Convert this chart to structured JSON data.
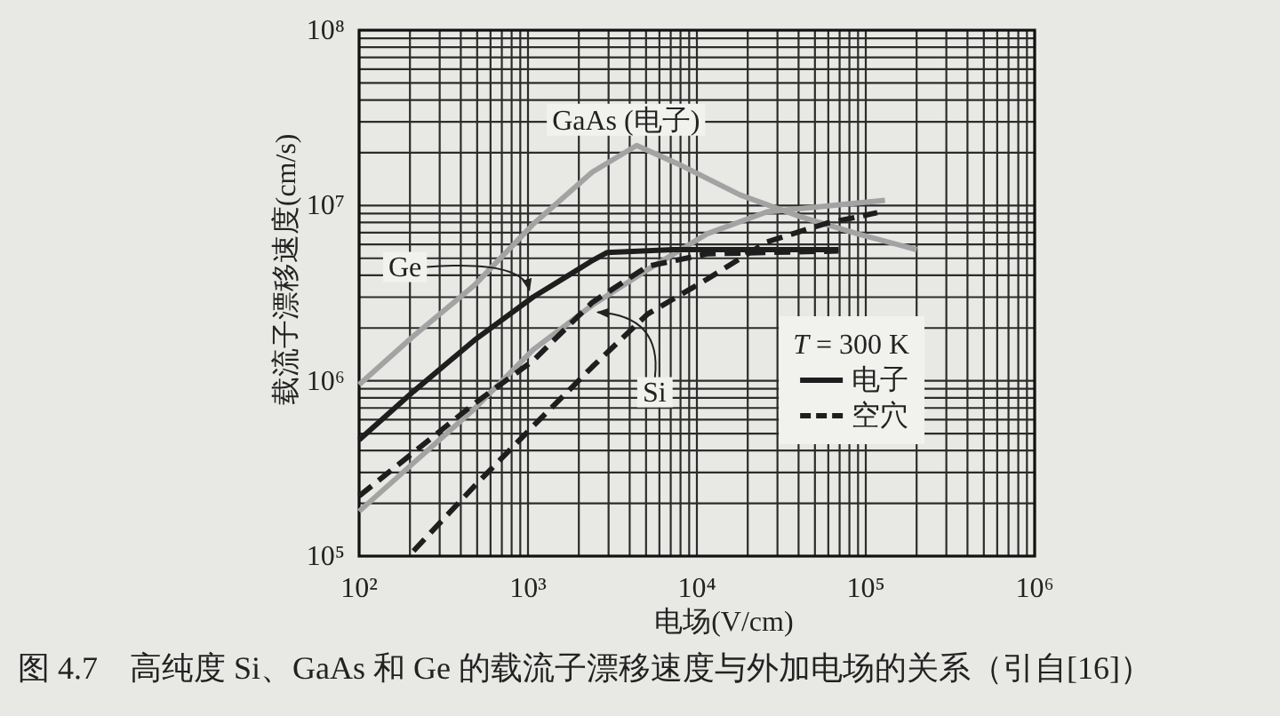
{
  "chart_data": {
    "type": "line",
    "xlabel": "电场(V/cm)",
    "ylabel": "载流子漂移速度(cm/s)",
    "log": "xy",
    "xlim": [
      100,
      1000000
    ],
    "ylim": [
      100000,
      100000000
    ],
    "xticks": [
      {
        "value": 100,
        "label": "10²"
      },
      {
        "value": 1000,
        "label": "10³"
      },
      {
        "value": 10000,
        "label": "10⁴"
      },
      {
        "value": 100000,
        "label": "10⁵"
      },
      {
        "value": 1000000,
        "label": "10⁶"
      }
    ],
    "yticks": [
      {
        "value": 100000,
        "label": "10⁵"
      },
      {
        "value": 1000000,
        "label": "10⁶"
      },
      {
        "value": 10000000,
        "label": "10⁷"
      },
      {
        "value": 100000000,
        "label": "10⁸"
      }
    ],
    "grid": true,
    "legend": "right",
    "legend_title": "*T* = 300 K",
    "annotations": [
      {
        "text": "GaAs (电子)",
        "x": 4400,
        "y": 22000000
      },
      {
        "text": "Ge",
        "x": 1070,
        "y": 3000000
      },
      {
        "text": "Si",
        "x": 2400,
        "y": 2700000
      },
      "图 4.7　高纯度 Si、GaAs 和 Ge 的载流子漂移速度与外加电场的关系（引自[16]）"
    ],
    "series": [
      {
        "color": "#a3a3a3",
        "line_style": "solid",
        "x": [
          100,
          210,
          480,
          1070,
          2400,
          4400,
          8000,
          18000,
          40000,
          89000,
          200000
        ],
        "values": [
          950000,
          1800000,
          3500000,
          7800000,
          15500000,
          22000000,
          17000000,
          11500000,
          8700000,
          6900000,
          5600000
        ]
      },
      {
        "color": "#a3a3a3",
        "line_style": "solid",
        "x": [
          100,
          210,
          480,
          1070,
          2400,
          5100,
          11500,
          26000,
          130000
        ],
        "values": [
          180000,
          340000,
          690000,
          1500000,
          2700000,
          4300000,
          6900000,
          9200000,
          10700000
        ]
      },
      {
        "name": "电子",
        "color": "#1e1e1e",
        "line_style": "solid",
        "x": [
          100,
          210,
          480,
          1070,
          1740,
          2360,
          2950,
          7200,
          69000
        ],
        "values": [
          460000,
          870000,
          1700000,
          3000000,
          4000000,
          4800000,
          5400000,
          5600000,
          5600000
        ]
      },
      {
        "name": "空穴",
        "color": "#1e1e1e",
        "line_style": "dashed",
        "x": [
          100,
          480,
          1070,
          2400,
          5100,
          11500,
          69000
        ],
        "values": [
          220000,
          740000,
          1300000,
          2800000,
          4500000,
          5300000,
          5500000
        ]
      },
      {
        "color": "#1e1e1e",
        "line_style": "dashed",
        "x": [
          210,
          480,
          1070,
          2400,
          5100,
          11500,
          26000,
          58000,
          117000
        ],
        "values": [
          107000,
          250000,
          550000,
          1200000,
          2400000,
          3800000,
          6200000,
          7900000,
          9100000
        ]
      }
    ]
  }
}
